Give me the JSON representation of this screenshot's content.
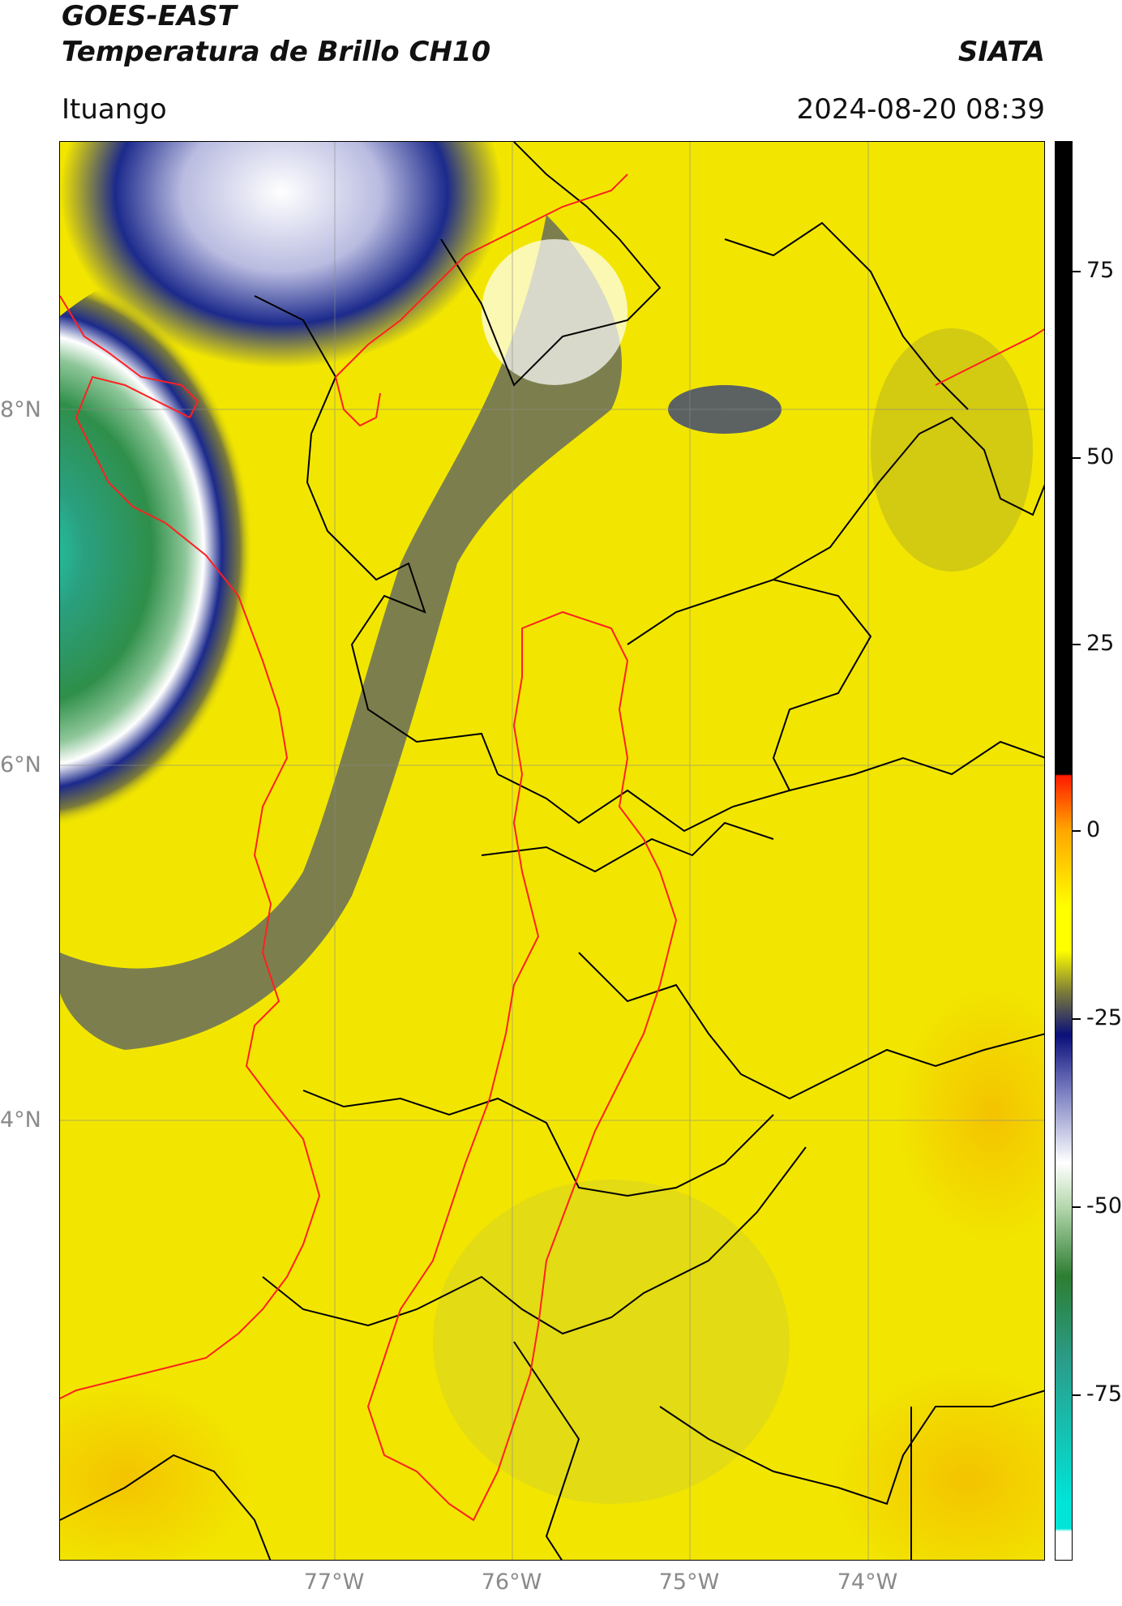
{
  "header": {
    "line1": "GOES-EAST",
    "line2": "Temperatura de Brillo CH10",
    "brand": "SIATA",
    "subtitle": "Ituango",
    "datetime": "2024-08-20 08:39"
  },
  "axes": {
    "lat_labels": [
      "8°N",
      "6°N",
      "4°N"
    ],
    "lon_labels": [
      "77°W",
      "76°W",
      "75°W",
      "74°W"
    ]
  },
  "colorbar": {
    "ticks": [
      "75",
      "50",
      "25",
      "0",
      "-25",
      "-50",
      "-75"
    ],
    "colors": {
      "black": "#000000",
      "red": "#ff1a00",
      "orange": "#ffa500",
      "yellow": "#ffff00",
      "olive": "#7a7a3a",
      "navy": "#0a0f7a",
      "white": "#ffffff",
      "green": "#2e7d32",
      "cyan": "#00e5d8"
    }
  },
  "map_colors": {
    "background_yellow": "#f2e600",
    "orange_patch": "#f4b400",
    "cloud_green": "#2f8f4a",
    "cloud_teal": "#1fb89a",
    "cloud_white": "#f4f4f8",
    "cloud_navy": "#1c2a8c",
    "cloud_violet": "#8e90c8",
    "border_black": "#000000",
    "coast_red": "#ff2020"
  }
}
